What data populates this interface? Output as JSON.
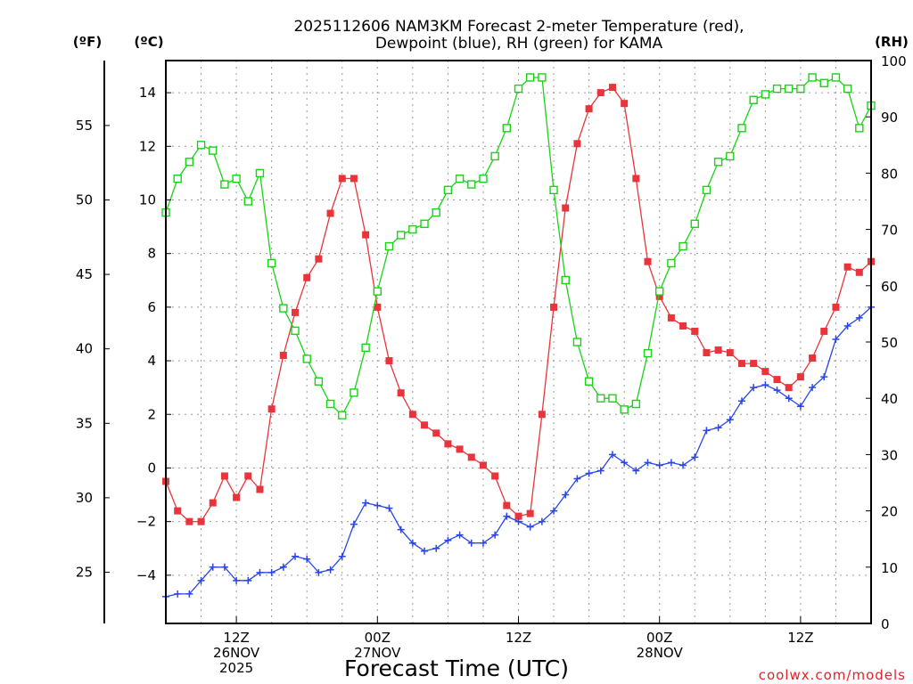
{
  "chart_data": {
    "type": "line",
    "title_line1": "2025112606 NAM3KM Forecast 2-meter Temperature (red),",
    "title_line2": "Dewpoint (blue), RH (green) for KAMA",
    "xlabel": "Forecast Time (UTC)",
    "left_unit_f": "(ºF)",
    "left_unit_c": "(ºC)",
    "right_unit": "(RH)",
    "credit": "coolwx.com/models",
    "x_range_hours": [
      6,
      66
    ],
    "ylim_c": [
      -5.8,
      15.2
    ],
    "ylim_rh": [
      0,
      100
    ],
    "c_ticks": [
      14,
      12,
      10,
      8,
      6,
      4,
      2,
      0,
      -2,
      -4
    ],
    "f_ticks": [
      55,
      50,
      45,
      40,
      35,
      30,
      25
    ],
    "rh_ticks": [
      100,
      90,
      80,
      70,
      60,
      50,
      40,
      30,
      20,
      10,
      0
    ],
    "x_ticks": [
      {
        "hour": 12,
        "lines": [
          "12Z",
          "26NOV",
          "2025"
        ]
      },
      {
        "hour": 24,
        "lines": [
          "00Z",
          "27NOV"
        ]
      },
      {
        "hour": 36,
        "lines": [
          "12Z"
        ]
      },
      {
        "hour": 48,
        "lines": [
          "00Z",
          "28NOV"
        ]
      },
      {
        "hour": 60,
        "lines": [
          "12Z"
        ]
      }
    ],
    "series": [
      {
        "name": "2-meter Temperature",
        "color": "red",
        "units": "C",
        "x": [
          6,
          7,
          8,
          9,
          10,
          11,
          12,
          13,
          14,
          15,
          16,
          17,
          18,
          19,
          20,
          21,
          22,
          23,
          24,
          25,
          26,
          27,
          28,
          29,
          30,
          31,
          32,
          33,
          34,
          35,
          36,
          37,
          38,
          39,
          40,
          41,
          42,
          43,
          44,
          45,
          46,
          47,
          48,
          49,
          50,
          51,
          52,
          53,
          54,
          55,
          56,
          57,
          58,
          59,
          60,
          61,
          62,
          63,
          64,
          65,
          66
        ],
        "values": [
          -0.5,
          -1.6,
          -2.0,
          -2.0,
          -1.3,
          -0.3,
          -1.1,
          -0.3,
          -0.8,
          2.2,
          4.2,
          5.8,
          7.1,
          7.8,
          9.5,
          10.8,
          10.8,
          8.7,
          6.0,
          4.0,
          2.8,
          2.0,
          1.6,
          1.3,
          0.9,
          0.7,
          0.4,
          0.1,
          -0.3,
          -1.4,
          -1.8,
          -1.7,
          2.0,
          6.0,
          9.7,
          12.1,
          13.4,
          14.0,
          14.2,
          13.6,
          10.8,
          7.7,
          6.4,
          5.6,
          5.3,
          5.1,
          4.3,
          4.4,
          4.3,
          3.9,
          3.9,
          3.6,
          3.3,
          3.0,
          3.4,
          4.1,
          5.1,
          6.0,
          7.5,
          7.3,
          7.7
        ]
      },
      {
        "name": "Dewpoint",
        "color": "blue",
        "units": "C",
        "x": [
          6,
          7,
          8,
          9,
          10,
          11,
          12,
          13,
          14,
          15,
          16,
          17,
          18,
          19,
          20,
          21,
          22,
          23,
          24,
          25,
          26,
          27,
          28,
          29,
          30,
          31,
          32,
          33,
          34,
          35,
          36,
          37,
          38,
          39,
          40,
          41,
          42,
          43,
          44,
          45,
          46,
          47,
          48,
          49,
          50,
          51,
          52,
          53,
          54,
          55,
          56,
          57,
          58,
          59,
          60,
          61,
          62,
          63,
          64,
          65,
          66
        ],
        "values": [
          -4.8,
          -4.7,
          -4.7,
          -4.2,
          -3.7,
          -3.7,
          -4.2,
          -4.2,
          -3.9,
          -3.9,
          -3.7,
          -3.3,
          -3.4,
          -3.9,
          -3.8,
          -3.3,
          -2.1,
          -1.3,
          -1.4,
          -1.5,
          -2.3,
          -2.8,
          -3.1,
          -3.0,
          -2.7,
          -2.5,
          -2.8,
          -2.8,
          -2.5,
          -1.8,
          -2.0,
          -2.2,
          -2.0,
          -1.6,
          -1.0,
          -0.4,
          -0.2,
          -0.1,
          0.5,
          0.2,
          -0.1,
          0.2,
          0.1,
          0.2,
          0.1,
          0.4,
          1.4,
          1.5,
          1.8,
          2.5,
          3.0,
          3.1,
          2.9,
          2.6,
          2.3,
          3.0,
          3.4,
          4.8,
          5.3,
          5.6,
          6.0
        ]
      },
      {
        "name": "RH",
        "color": "green",
        "units": "%",
        "x": [
          6,
          7,
          8,
          9,
          10,
          11,
          12,
          13,
          14,
          15,
          16,
          17,
          18,
          19,
          20,
          21,
          22,
          23,
          24,
          25,
          26,
          27,
          28,
          29,
          30,
          31,
          32,
          33,
          34,
          35,
          36,
          37,
          38,
          39,
          40,
          41,
          42,
          43,
          44,
          45,
          46,
          47,
          48,
          49,
          50,
          51,
          52,
          53,
          54,
          55,
          56,
          57,
          58,
          59,
          60,
          61,
          62,
          63,
          64,
          65,
          66
        ],
        "values": [
          73,
          79,
          82,
          85,
          84,
          78,
          79,
          75,
          80,
          64,
          56,
          52,
          47,
          43,
          39,
          37,
          41,
          49,
          59,
          67,
          69,
          70,
          71,
          73,
          77,
          79,
          78,
          79,
          83,
          88,
          95,
          97,
          97,
          77,
          61,
          50,
          43,
          40,
          40,
          38,
          39,
          48,
          59,
          64,
          67,
          71,
          77,
          82,
          83,
          88,
          93,
          94,
          95,
          95,
          95,
          97,
          96,
          97,
          95,
          88,
          92
        ]
      }
    ]
  }
}
